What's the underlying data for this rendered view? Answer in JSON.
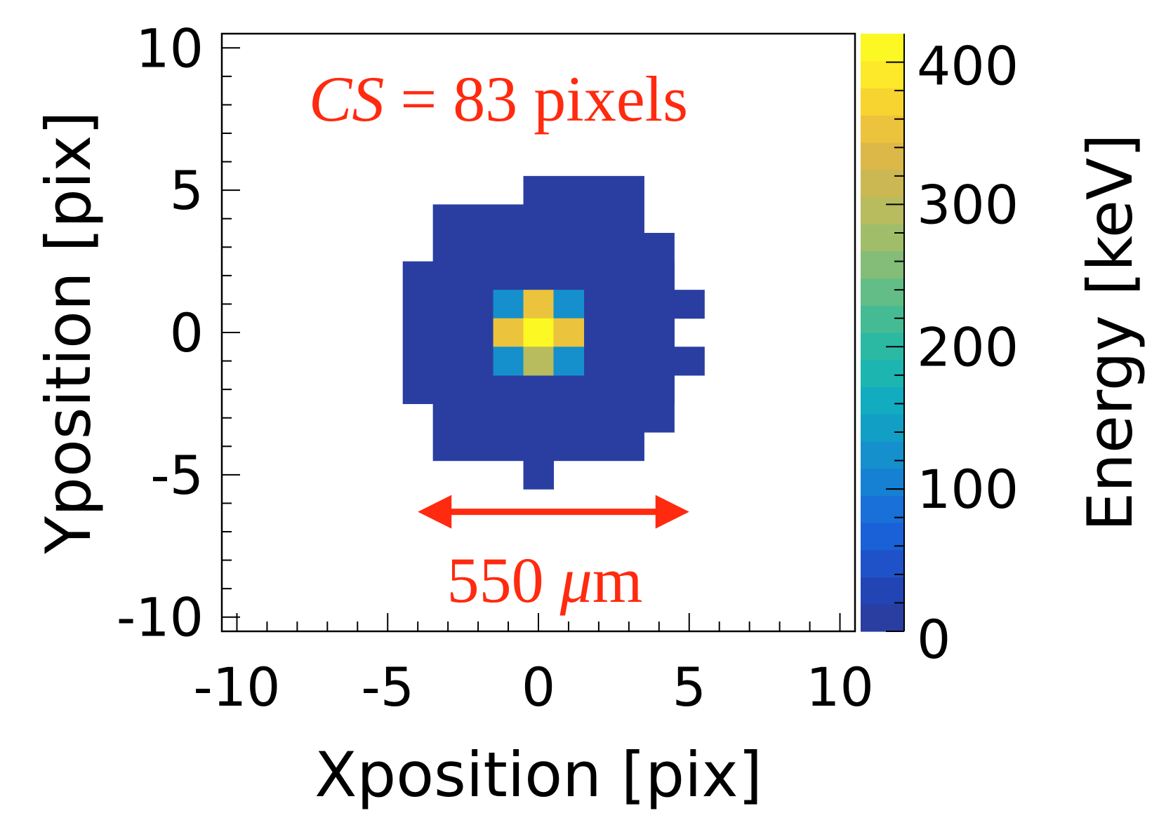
{
  "chart_data": {
    "type": "heatmap",
    "title": "",
    "xlabel": "Xposition [pix]",
    "ylabel": "Yposition [pix]",
    "xlim": [
      -10.5,
      10.5
    ],
    "ylim": [
      -10.5,
      10.5
    ],
    "xticks": [
      -10,
      -5,
      0,
      5,
      10
    ],
    "xtick_labels": [
      "-10",
      "-5",
      "0",
      "5",
      "10"
    ],
    "yticks": [
      -10,
      -5,
      0,
      5,
      10
    ],
    "ytick_labels": [
      "-10",
      "-5",
      "0",
      "5",
      "10"
    ],
    "colorbar": {
      "label": "Energy [keV]",
      "range": [
        0,
        420
      ],
      "ticks": [
        0,
        100,
        200,
        300,
        400
      ],
      "tick_labels": [
        "0",
        "100",
        "200",
        "300",
        "400"
      ],
      "palette": [
        "#2a3ea2",
        "#2244b4",
        "#1f52c8",
        "#1a61d8",
        "#1870d8",
        "#1680d2",
        "#1590cc",
        "#129fc6",
        "#12abc0",
        "#1cb5b0",
        "#2cb9a4",
        "#45bb94",
        "#63bd86",
        "#83bd77",
        "#a0bd6a",
        "#b8bb5e",
        "#cbb852",
        "#dbb847",
        "#ecc33c",
        "#f7d42f",
        "#fde829",
        "#fcf823"
      ]
    },
    "background_energy": 5,
    "cells": [
      {
        "x": -4,
        "y": -2,
        "w": 9,
        "h": 5
      },
      {
        "x": -3,
        "y": -4,
        "w": 7,
        "h": 2
      },
      {
        "x": -3,
        "y": 3,
        "w": 7,
        "h": 2
      },
      {
        "x": 0,
        "y": 5,
        "w": 4,
        "h": 1
      },
      {
        "x": 0,
        "y": -5,
        "w": 1,
        "h": 1
      },
      {
        "x": 4,
        "y": -3,
        "w": 1,
        "h": 7
      },
      {
        "x": 5,
        "y": -1,
        "w": 1,
        "h": 1
      },
      {
        "x": 5,
        "y": 1,
        "w": 1,
        "h": 1
      }
    ],
    "hot_cells": [
      {
        "x": -1,
        "y": 1,
        "energy": 130
      },
      {
        "x": 0,
        "y": 1,
        "energy": 350
      },
      {
        "x": 1,
        "y": 1,
        "energy": 130
      },
      {
        "x": -1,
        "y": 0,
        "energy": 350
      },
      {
        "x": 0,
        "y": 0,
        "energy": 420
      },
      {
        "x": 1,
        "y": 0,
        "energy": 350
      },
      {
        "x": -1,
        "y": -1,
        "energy": 125
      },
      {
        "x": 0,
        "y": -1,
        "energy": 300
      },
      {
        "x": 1,
        "y": -1,
        "energy": 125
      }
    ],
    "annotations": {
      "cluster_size_symbol": "CS",
      "cluster_size_text": " = 83 pixels",
      "width_value": "550 ",
      "width_unit_greek": "μ",
      "width_unit_rest": "m",
      "width_arrow_range": [
        -4.0,
        5.0
      ],
      "width_arrow_y": -6.3
    },
    "annotation_color": "#ff2a0f"
  }
}
